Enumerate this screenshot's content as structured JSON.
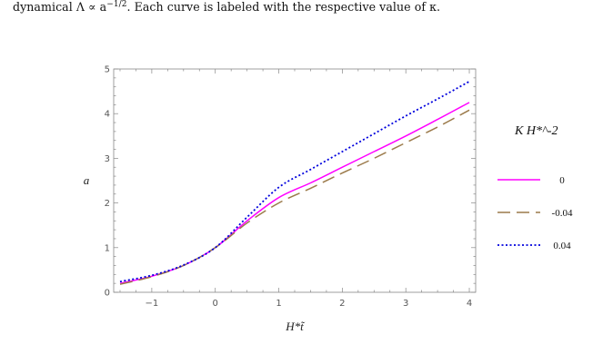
{
  "caption": {
    "pre": "dynamical Λ ∝ a",
    "exponent": "−1/2",
    "post": ". Each curve is labeled with the respective value of κ."
  },
  "chart_data": {
    "type": "line",
    "xlabel": "H*t̃",
    "ylabel": "a",
    "xlim": [
      -1.6,
      4.1
    ],
    "ylim": [
      0,
      5
    ],
    "x_ticks": [
      -1,
      0,
      1,
      2,
      3,
      4
    ],
    "y_ticks": [
      0,
      1,
      2,
      3,
      4,
      5
    ],
    "grid": false,
    "legend_title": "K H*^-2",
    "legend_position": "right",
    "series": [
      {
        "name": "0",
        "color": "#ff00ff",
        "style": "solid",
        "x": [
          -1.5,
          -1.0,
          -0.5,
          0.0,
          0.5,
          1.0,
          1.5,
          2.0,
          2.5,
          3.0,
          3.5,
          4.0
        ],
        "y": [
          0.2,
          0.36,
          0.6,
          1.0,
          1.6,
          2.12,
          2.45,
          2.8,
          3.15,
          3.5,
          3.87,
          4.25
        ]
      },
      {
        "name": "-0.04",
        "color": "#9b7a4a",
        "style": "dashed",
        "x": [
          -1.5,
          -1.0,
          -0.5,
          0.0,
          0.5,
          1.0,
          1.5,
          2.0,
          2.5,
          3.0,
          3.5,
          4.0
        ],
        "y": [
          0.18,
          0.35,
          0.6,
          1.0,
          1.55,
          2.0,
          2.33,
          2.67,
          3.0,
          3.35,
          3.7,
          4.08
        ]
      },
      {
        "name": "0.04",
        "color": "#0000dd",
        "style": "dotted",
        "x": [
          -1.5,
          -1.0,
          -0.5,
          0.0,
          0.5,
          1.0,
          1.5,
          2.0,
          2.5,
          3.0,
          3.5,
          4.0
        ],
        "y": [
          0.24,
          0.38,
          0.61,
          1.0,
          1.68,
          2.35,
          2.75,
          3.15,
          3.55,
          3.95,
          4.33,
          4.72
        ]
      }
    ]
  }
}
